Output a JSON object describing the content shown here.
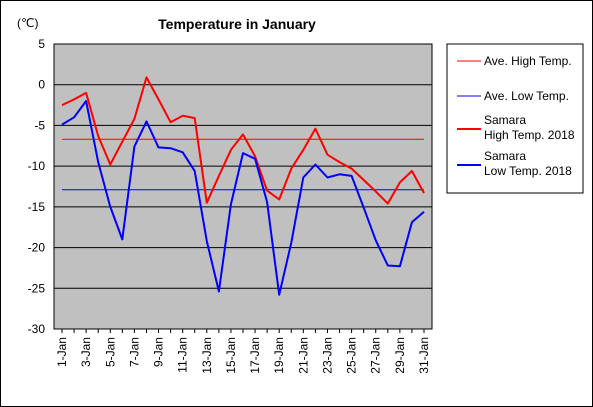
{
  "chart_data": {
    "type": "line",
    "title": "Temperature in January",
    "unit_label": "(℃)",
    "xlabel": "",
    "ylabel": "",
    "ylim": [
      -30,
      5
    ],
    "yticks": [
      5,
      0,
      -5,
      -10,
      -15,
      -20,
      -25,
      -30
    ],
    "grid": true,
    "legend_position": "right",
    "plot_background": "#c0c0c0",
    "x_tick_labels": [
      "1-Jan",
      "3-Jan",
      "5-Jan",
      "7-Jan",
      "9-Jan",
      "11-Jan",
      "13-Jan",
      "15-Jan",
      "17-Jan",
      "19-Jan",
      "21-Jan",
      "23-Jan",
      "25-Jan",
      "27-Jan",
      "29-Jan",
      "31-Jan"
    ],
    "x": [
      1,
      2,
      3,
      4,
      5,
      6,
      7,
      8,
      9,
      10,
      11,
      12,
      13,
      14,
      15,
      16,
      17,
      18,
      19,
      20,
      21,
      22,
      23,
      24,
      25,
      26,
      27,
      28,
      29,
      30,
      31
    ],
    "series": [
      {
        "name": "Ave. High Temp.",
        "color": "#ff0000",
        "style": "thin",
        "values": [
          -6.7,
          -6.7,
          -6.7,
          -6.7,
          -6.7,
          -6.7,
          -6.7,
          -6.7,
          -6.7,
          -6.7,
          -6.7,
          -6.7,
          -6.7,
          -6.7,
          -6.7,
          -6.7,
          -6.7,
          -6.7,
          -6.7,
          -6.7,
          -6.7,
          -6.7,
          -6.7,
          -6.7,
          -6.7,
          -6.7,
          -6.7,
          -6.7,
          -6.7,
          -6.7,
          -6.7
        ]
      },
      {
        "name": "Ave. Low Temp.",
        "color": "#0000ff",
        "style": "thin",
        "values": [
          -12.9,
          -12.9,
          -12.9,
          -12.9,
          -12.9,
          -12.9,
          -12.9,
          -12.9,
          -12.9,
          -12.9,
          -12.9,
          -12.9,
          -12.9,
          -12.9,
          -12.9,
          -12.9,
          -12.9,
          -12.9,
          -12.9,
          -12.9,
          -12.9,
          -12.9,
          -12.9,
          -12.9,
          -12.9,
          -12.9,
          -12.9,
          -12.9,
          -12.9,
          -12.9,
          -12.9
        ]
      },
      {
        "name": "Samara High Temp. 2018",
        "label_lines": [
          "Samara",
          "High Temp. 2018"
        ],
        "color": "#ff0000",
        "style": "thick",
        "values": [
          -2.5,
          -1.8,
          -1.0,
          -6.3,
          -9.8,
          -7.0,
          -4.2,
          0.9,
          -1.8,
          -4.6,
          -3.8,
          -4.1,
          -14.5,
          -11.2,
          -8.0,
          -6.1,
          -8.8,
          -13.0,
          -14.1,
          -10.3,
          -8.0,
          -5.4,
          -8.6,
          -9.5,
          -10.3,
          -11.7,
          -13.1,
          -14.6,
          -12.0,
          -10.6,
          -13.3
        ]
      },
      {
        "name": "Samara Low Temp. 2018",
        "label_lines": [
          "Samara",
          "Low Temp. 2018"
        ],
        "color": "#0000ff",
        "style": "thick",
        "values": [
          -4.9,
          -4.0,
          -2.0,
          -9.5,
          -15.0,
          -19.0,
          -7.6,
          -4.5,
          -7.7,
          -7.8,
          -8.3,
          -10.6,
          -19.2,
          -25.4,
          -14.7,
          -8.4,
          -9.1,
          -14.4,
          -25.8,
          -19.4,
          -11.4,
          -9.8,
          -11.4,
          -11.0,
          -11.2,
          -15.1,
          -19.1,
          -22.2,
          -22.3,
          -16.9,
          -15.6
        ]
      }
    ]
  }
}
